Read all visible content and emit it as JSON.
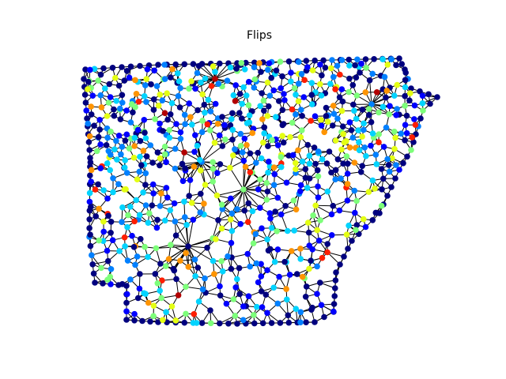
{
  "figure": {
    "title": "Flips"
  },
  "graph": {
    "type": "network",
    "node_colormap": "jet",
    "edge_color": "#000000",
    "node_color_samples": [
      "#00007f",
      "#0000ff",
      "#0080ff",
      "#00d4ff",
      "#7dff7a",
      "#e4ff13",
      "#ff9400",
      "#ff1e00",
      "#b20000"
    ]
  }
}
